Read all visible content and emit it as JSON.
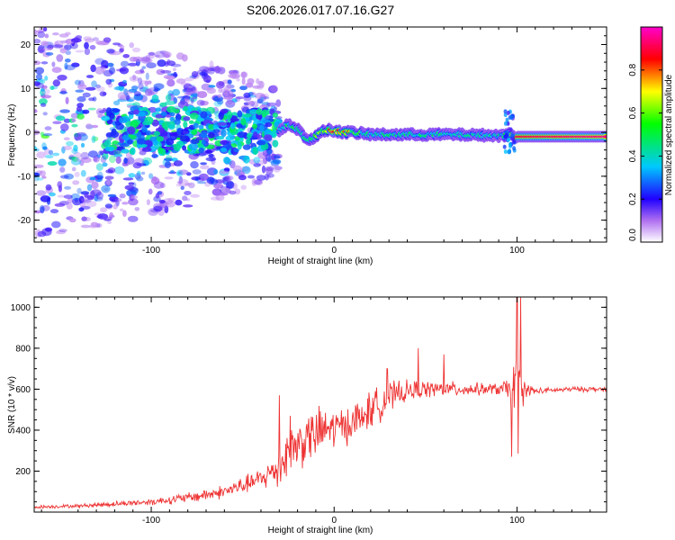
{
  "chart_data": [
    {
      "type": "heatmap",
      "title": "S206.2026.017.07.16.G27",
      "xlabel": "Height of straight line (km)",
      "ylabel": "Frequency (Hz)",
      "xlim": [
        -164,
        149
      ],
      "ylim": [
        -25,
        24
      ],
      "xticks": [
        -100,
        0,
        100
      ],
      "yticks": [
        -20,
        -10,
        0,
        10,
        20
      ],
      "colorbar": {
        "label": "Normalized spectral amplitude",
        "range": [
          0.0,
          1.0
        ],
        "ticks": [
          0.0,
          0.2,
          0.4,
          0.6,
          0.8
        ],
        "tick_labels": [
          "0.0",
          "0.2",
          "0.4",
          "0.6",
          "0.8"
        ]
      },
      "ridge": {
        "x": [
          -30,
          -26,
          -22,
          -18,
          -14,
          -10,
          -6,
          -2,
          2,
          6,
          10,
          20,
          40,
          60,
          80,
          92,
          96,
          100,
          149
        ],
        "freq": [
          0.5,
          1.5,
          1.5,
          0.0,
          -2.0,
          -1.0,
          0.5,
          0.5,
          0.2,
          0.0,
          0.0,
          -0.5,
          -0.5,
          -0.5,
          -0.6,
          -0.8,
          -0.3,
          -1.0,
          -1.0
        ],
        "amplitude": [
          0.4,
          0.5,
          0.5,
          0.45,
          0.45,
          0.55,
          0.65,
          0.8,
          0.85,
          0.85,
          0.6,
          0.45,
          0.45,
          0.45,
          0.4,
          0.45,
          0.55,
          0.9,
          0.95
        ]
      },
      "scatter_region": {
        "x_start": -164,
        "x_end": -30,
        "freq_spread_max": 24,
        "amplitude_max": 0.6
      }
    },
    {
      "type": "line",
      "xlabel": "Height of straight line (km)",
      "ylabel": "SNR (10 * v/v)",
      "xlim": [
        -164,
        149
      ],
      "ylim": [
        0,
        1050
      ],
      "xticks": [
        -100,
        0,
        100
      ],
      "yticks": [
        200,
        400,
        600,
        800,
        1000
      ],
      "series": [
        {
          "name": "SNR",
          "color": "#ee3333",
          "x": [
            -164,
            -140,
            -120,
            -100,
            -80,
            -60,
            -50,
            -40,
            -30,
            -25,
            -20,
            -15,
            -10,
            -5,
            0,
            5,
            10,
            15,
            20,
            25,
            30,
            40,
            50,
            60,
            70,
            80,
            90,
            95,
            98,
            100,
            102,
            105,
            110,
            120,
            130,
            140,
            149
          ],
          "base": [
            25,
            30,
            40,
            50,
            70,
            100,
            130,
            160,
            220,
            300,
            330,
            360,
            380,
            400,
            410,
            420,
            440,
            460,
            500,
            530,
            560,
            590,
            600,
            600,
            600,
            600,
            600,
            600,
            580,
            560,
            560,
            600,
            590,
            595,
            600,
            600,
            600
          ],
          "noise": [
            10,
            10,
            15,
            20,
            30,
            40,
            50,
            60,
            120,
            140,
            150,
            150,
            150,
            140,
            120,
            110,
            110,
            110,
            110,
            100,
            90,
            60,
            50,
            45,
            40,
            35,
            35,
            60,
            180,
            350,
            250,
            40,
            20,
            15,
            15,
            15,
            15
          ],
          "spikes": [
            [
              -30,
              570
            ],
            [
              -24,
              470
            ],
            [
              29,
              700
            ],
            [
              46,
              800
            ],
            [
              60,
              770
            ],
            [
              97,
              270
            ],
            [
              100,
              1050
            ],
            [
              102,
              1050
            ]
          ]
        }
      ]
    }
  ]
}
